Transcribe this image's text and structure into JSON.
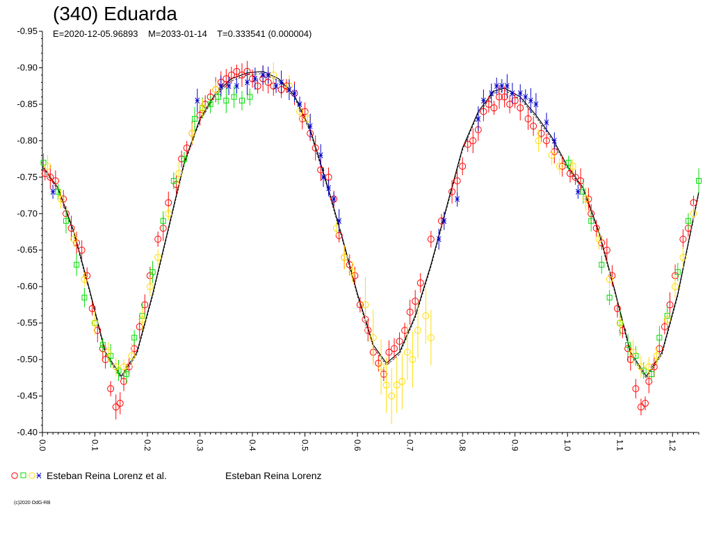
{
  "chart_data": {
    "type": "scatter",
    "title": "(340) Eduarda",
    "subtitle": "E=2020-12-05.96893    M=2033-01-14    T=0.333541 (0.000004)",
    "xlabel": "",
    "ylabel": "",
    "xlim": [
      0.0,
      1.25
    ],
    "ylim": [
      -0.95,
      -0.4
    ],
    "y_inverted": true,
    "grid": false,
    "x_ticks": [
      "0.0",
      "0.1",
      "0.2",
      "0.3",
      "0.4",
      "0.5",
      "0.6",
      "0.7",
      "0.8",
      "0.9",
      "1.0",
      "1.1",
      "1.2"
    ],
    "y_ticks": [
      "-0.95",
      "-0.90",
      "-0.85",
      "-0.80",
      "-0.75",
      "-0.70",
      "-0.65",
      "-0.60",
      "-0.55",
      "-0.50",
      "-0.45",
      "-0.40"
    ],
    "curve": {
      "note_keys": [
        "phase",
        "mag"
      ],
      "points": [
        [
          0.0,
          -0.765
        ],
        [
          0.03,
          -0.735
        ],
        [
          0.06,
          -0.675
        ],
        [
          0.09,
          -0.595
        ],
        [
          0.12,
          -0.51
        ],
        [
          0.15,
          -0.477
        ],
        [
          0.18,
          -0.51
        ],
        [
          0.21,
          -0.59
        ],
        [
          0.24,
          -0.68
        ],
        [
          0.27,
          -0.77
        ],
        [
          0.3,
          -0.83
        ],
        [
          0.33,
          -0.865
        ],
        [
          0.36,
          -0.885
        ],
        [
          0.39,
          -0.893
        ],
        [
          0.42,
          -0.895
        ],
        [
          0.45,
          -0.885
        ],
        [
          0.48,
          -0.862
        ],
        [
          0.51,
          -0.815
        ],
        [
          0.54,
          -0.745
        ],
        [
          0.57,
          -0.67
        ],
        [
          0.6,
          -0.59
        ],
        [
          0.63,
          -0.52
        ],
        [
          0.655,
          -0.495
        ],
        [
          0.68,
          -0.51
        ],
        [
          0.71,
          -0.56
        ],
        [
          0.74,
          -0.63
        ],
        [
          0.77,
          -0.71
        ],
        [
          0.8,
          -0.79
        ],
        [
          0.83,
          -0.84
        ],
        [
          0.86,
          -0.868
        ],
        [
          0.88,
          -0.872
        ],
        [
          0.91,
          -0.86
        ],
        [
          0.94,
          -0.835
        ],
        [
          0.97,
          -0.805
        ],
        [
          1.0,
          -0.765
        ],
        [
          1.03,
          -0.735
        ],
        [
          1.06,
          -0.675
        ],
        [
          1.09,
          -0.595
        ],
        [
          1.12,
          -0.51
        ],
        [
          1.15,
          -0.477
        ],
        [
          1.18,
          -0.51
        ],
        [
          1.21,
          -0.59
        ],
        [
          1.25,
          -0.73
        ]
      ]
    },
    "series": [
      {
        "marker": "circle",
        "color": "#ff0000",
        "points": [
          [
            0.005,
            -0.755
          ],
          [
            0.015,
            -0.75
          ],
          [
            0.025,
            -0.745
          ],
          [
            0.04,
            -0.72
          ],
          [
            0.045,
            -0.7
          ],
          [
            0.055,
            -0.68
          ],
          [
            0.065,
            -0.66
          ],
          [
            0.075,
            -0.65
          ],
          [
            0.085,
            -0.615
          ],
          [
            0.095,
            -0.57
          ],
          [
            0.105,
            -0.54
          ],
          [
            0.115,
            -0.515
          ],
          [
            0.12,
            -0.5
          ],
          [
            0.13,
            -0.46
          ],
          [
            0.14,
            -0.435
          ],
          [
            0.148,
            -0.44
          ],
          [
            0.155,
            -0.47
          ],
          [
            0.165,
            -0.49
          ],
          [
            0.175,
            -0.515
          ],
          [
            0.185,
            -0.545
          ],
          [
            0.195,
            -0.575
          ],
          [
            0.205,
            -0.615
          ],
          [
            0.22,
            -0.665
          ],
          [
            0.23,
            -0.68
          ],
          [
            0.24,
            -0.715
          ],
          [
            0.255,
            -0.74
          ],
          [
            0.265,
            -0.775
          ],
          [
            0.275,
            -0.79
          ],
          [
            0.285,
            -0.81
          ],
          [
            0.3,
            -0.835
          ],
          [
            0.31,
            -0.85
          ],
          [
            0.32,
            -0.86
          ],
          [
            0.33,
            -0.87
          ],
          [
            0.34,
            -0.88
          ],
          [
            0.35,
            -0.885
          ],
          [
            0.36,
            -0.89
          ],
          [
            0.37,
            -0.895
          ],
          [
            0.38,
            -0.89
          ],
          [
            0.39,
            -0.895
          ],
          [
            0.4,
            -0.885
          ],
          [
            0.41,
            -0.875
          ],
          [
            0.42,
            -0.885
          ],
          [
            0.43,
            -0.88
          ],
          [
            0.44,
            -0.875
          ],
          [
            0.455,
            -0.87
          ],
          [
            0.465,
            -0.875
          ],
          [
            0.48,
            -0.865
          ],
          [
            0.495,
            -0.83
          ],
          [
            0.5,
            -0.84
          ],
          [
            0.51,
            -0.81
          ],
          [
            0.52,
            -0.79
          ],
          [
            0.53,
            -0.76
          ],
          [
            0.545,
            -0.75
          ],
          [
            0.555,
            -0.72
          ],
          [
            0.565,
            -0.67
          ],
          [
            0.575,
            -0.64
          ],
          [
            0.585,
            -0.63
          ],
          [
            0.595,
            -0.615
          ],
          [
            0.605,
            -0.575
          ],
          [
            0.615,
            -0.555
          ],
          [
            0.62,
            -0.54
          ],
          [
            0.63,
            -0.51
          ],
          [
            0.64,
            -0.495
          ],
          [
            0.65,
            -0.48
          ],
          [
            0.66,
            -0.51
          ],
          [
            0.67,
            -0.515
          ],
          [
            0.68,
            -0.525
          ],
          [
            0.69,
            -0.54
          ],
          [
            0.7,
            -0.565
          ],
          [
            0.71,
            -0.58
          ],
          [
            0.72,
            -0.605
          ],
          [
            0.74,
            -0.665
          ],
          [
            0.76,
            -0.69
          ],
          [
            0.78,
            -0.73
          ],
          [
            0.79,
            -0.745
          ],
          [
            0.8,
            -0.765
          ],
          [
            0.81,
            -0.795
          ],
          [
            0.82,
            -0.8
          ],
          [
            0.83,
            -0.815
          ],
          [
            0.84,
            -0.84
          ],
          [
            0.85,
            -0.85
          ],
          [
            0.86,
            -0.845
          ],
          [
            0.87,
            -0.86
          ],
          [
            0.88,
            -0.86
          ],
          [
            0.89,
            -0.85
          ],
          [
            0.9,
            -0.855
          ],
          [
            0.91,
            -0.845
          ],
          [
            0.925,
            -0.83
          ],
          [
            0.935,
            -0.82
          ],
          [
            0.95,
            -0.81
          ],
          [
            0.96,
            -0.8
          ],
          [
            0.975,
            -0.785
          ],
          [
            0.99,
            -0.765
          ],
          [
            1.005,
            -0.755
          ],
          [
            1.015,
            -0.75
          ],
          [
            1.025,
            -0.745
          ],
          [
            1.04,
            -0.72
          ],
          [
            1.045,
            -0.7
          ],
          [
            1.055,
            -0.68
          ],
          [
            1.065,
            -0.66
          ],
          [
            1.075,
            -0.65
          ],
          [
            1.085,
            -0.615
          ],
          [
            1.095,
            -0.57
          ],
          [
            1.105,
            -0.54
          ],
          [
            1.115,
            -0.515
          ],
          [
            1.12,
            -0.5
          ],
          [
            1.13,
            -0.46
          ],
          [
            1.14,
            -0.435
          ],
          [
            1.148,
            -0.44
          ],
          [
            1.155,
            -0.47
          ],
          [
            1.165,
            -0.49
          ],
          [
            1.175,
            -0.515
          ],
          [
            1.185,
            -0.545
          ],
          [
            1.195,
            -0.575
          ],
          [
            1.205,
            -0.615
          ],
          [
            1.22,
            -0.665
          ],
          [
            1.23,
            -0.68
          ],
          [
            1.24,
            -0.715
          ]
        ]
      },
      {
        "marker": "square",
        "color": "#00dd00",
        "points": [
          [
            0.002,
            -0.77
          ],
          [
            0.03,
            -0.73
          ],
          [
            0.045,
            -0.69
          ],
          [
            0.065,
            -0.63
          ],
          [
            0.08,
            -0.585
          ],
          [
            0.1,
            -0.55
          ],
          [
            0.115,
            -0.52
          ],
          [
            0.13,
            -0.505
          ],
          [
            0.145,
            -0.485
          ],
          [
            0.16,
            -0.48
          ],
          [
            0.175,
            -0.53
          ],
          [
            0.19,
            -0.56
          ],
          [
            0.21,
            -0.62
          ],
          [
            0.23,
            -0.69
          ],
          [
            0.25,
            -0.745
          ],
          [
            0.27,
            -0.775
          ],
          [
            0.29,
            -0.83
          ],
          [
            0.305,
            -0.845
          ],
          [
            0.32,
            -0.85
          ],
          [
            0.335,
            -0.86
          ],
          [
            0.35,
            -0.855
          ],
          [
            0.365,
            -0.86
          ],
          [
            0.38,
            -0.855
          ],
          [
            0.395,
            -0.86
          ],
          [
            1.002,
            -0.77
          ],
          [
            1.03,
            -0.73
          ],
          [
            1.045,
            -0.69
          ],
          [
            1.065,
            -0.63
          ],
          [
            1.08,
            -0.585
          ],
          [
            1.1,
            -0.55
          ],
          [
            1.115,
            -0.52
          ],
          [
            1.13,
            -0.505
          ],
          [
            1.145,
            -0.485
          ],
          [
            1.16,
            -0.48
          ],
          [
            1.175,
            -0.53
          ],
          [
            1.19,
            -0.56
          ],
          [
            1.21,
            -0.62
          ],
          [
            1.23,
            -0.69
          ],
          [
            1.25,
            -0.745
          ]
        ]
      },
      {
        "marker": "circle",
        "color": "#ffdd00",
        "points": [
          [
            0.01,
            -0.765
          ],
          [
            0.035,
            -0.72
          ],
          [
            0.06,
            -0.665
          ],
          [
            0.08,
            -0.61
          ],
          [
            0.1,
            -0.55
          ],
          [
            0.125,
            -0.51
          ],
          [
            0.14,
            -0.49
          ],
          [
            0.155,
            -0.49
          ],
          [
            0.17,
            -0.505
          ],
          [
            0.19,
            -0.555
          ],
          [
            0.205,
            -0.6
          ],
          [
            0.22,
            -0.64
          ],
          [
            0.24,
            -0.7
          ],
          [
            0.26,
            -0.755
          ],
          [
            0.285,
            -0.81
          ],
          [
            0.305,
            -0.845
          ],
          [
            0.33,
            -0.87
          ],
          [
            0.44,
            -0.89
          ],
          [
            0.47,
            -0.875
          ],
          [
            0.49,
            -0.84
          ],
          [
            0.505,
            -0.83
          ],
          [
            0.56,
            -0.68
          ],
          [
            0.575,
            -0.64
          ],
          [
            0.59,
            -0.62
          ],
          [
            0.615,
            -0.575
          ],
          [
            0.63,
            -0.53
          ],
          [
            0.645,
            -0.49
          ],
          [
            0.655,
            -0.465
          ],
          [
            0.665,
            -0.45
          ],
          [
            0.675,
            -0.465
          ],
          [
            0.685,
            -0.47
          ],
          [
            0.695,
            -0.51
          ],
          [
            0.705,
            -0.5
          ],
          [
            0.715,
            -0.54
          ],
          [
            0.73,
            -0.56
          ],
          [
            0.74,
            -0.53
          ],
          [
            0.945,
            -0.8
          ],
          [
            0.97,
            -0.78
          ],
          [
            0.985,
            -0.765
          ],
          [
            1.01,
            -0.765
          ],
          [
            1.035,
            -0.72
          ],
          [
            1.06,
            -0.665
          ],
          [
            1.08,
            -0.61
          ],
          [
            1.1,
            -0.55
          ],
          [
            1.125,
            -0.51
          ],
          [
            1.14,
            -0.49
          ],
          [
            1.155,
            -0.49
          ],
          [
            1.17,
            -0.505
          ],
          [
            1.19,
            -0.555
          ],
          [
            1.205,
            -0.6
          ],
          [
            1.22,
            -0.64
          ],
          [
            1.24,
            -0.7
          ]
        ]
      },
      {
        "marker": "star",
        "color": "#0000cc",
        "points": [
          [
            0.02,
            -0.73
          ],
          [
            0.295,
            -0.855
          ],
          [
            0.34,
            -0.875
          ],
          [
            0.355,
            -0.875
          ],
          [
            0.37,
            -0.875
          ],
          [
            0.39,
            -0.88
          ],
          [
            0.405,
            -0.885
          ],
          [
            0.42,
            -0.89
          ],
          [
            0.43,
            -0.89
          ],
          [
            0.445,
            -0.875
          ],
          [
            0.455,
            -0.88
          ],
          [
            0.47,
            -0.87
          ],
          [
            0.48,
            -0.865
          ],
          [
            0.49,
            -0.85
          ],
          [
            0.51,
            -0.82
          ],
          [
            0.53,
            -0.78
          ],
          [
            0.535,
            -0.75
          ],
          [
            0.545,
            -0.735
          ],
          [
            0.555,
            -0.72
          ],
          [
            0.565,
            -0.69
          ],
          [
            0.755,
            -0.665
          ],
          [
            0.765,
            -0.69
          ],
          [
            0.79,
            -0.72
          ],
          [
            0.83,
            -0.83
          ],
          [
            0.84,
            -0.855
          ],
          [
            0.855,
            -0.865
          ],
          [
            0.865,
            -0.875
          ],
          [
            0.875,
            -0.875
          ],
          [
            0.885,
            -0.875
          ],
          [
            0.895,
            -0.865
          ],
          [
            0.91,
            -0.865
          ],
          [
            0.92,
            -0.86
          ],
          [
            0.93,
            -0.855
          ],
          [
            0.94,
            -0.85
          ],
          [
            0.96,
            -0.825
          ],
          [
            0.975,
            -0.8
          ],
          [
            1.02,
            -0.73
          ]
        ]
      }
    ],
    "legend": {
      "entries": [
        "Esteban Reina Lorenz et al.",
        "Esteban Reina Lorenz"
      ],
      "symbol_colors": [
        "#ff0000",
        "#00dd00",
        "#ffdd00",
        "#0000cc"
      ]
    }
  },
  "footer": {
    "copyright": "(c)2020 OdG-RB"
  }
}
